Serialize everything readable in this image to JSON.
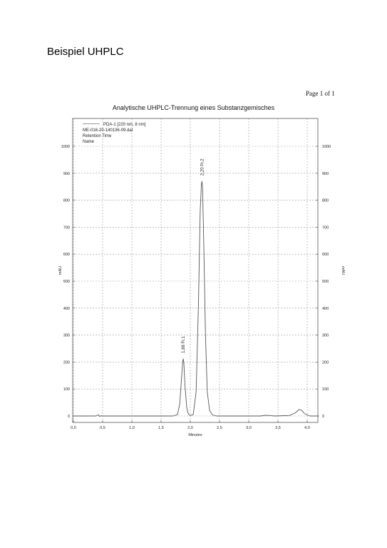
{
  "page": {
    "heading": "Beispiel UHPLC",
    "page_label": "Page 1 of 1"
  },
  "chart_data": {
    "type": "line",
    "title": "Analytische UHPLC-Trennung eines Substanzgemisches",
    "xlabel": "Minutes",
    "ylabel": "mAU",
    "xlim": [
      0.0,
      4.2
    ],
    "ylim": [
      -20,
      1050
    ],
    "grid": true,
    "legend_position": "top-left",
    "legend_lines": [
      "PDA-1 [220 nm, 8 nm]",
      "ME-016-20-140136-09.dat",
      "Retention Time",
      "Name"
    ],
    "x_ticks": [
      0.0,
      0.5,
      1.0,
      1.5,
      2.0,
      2.5,
      3.0,
      3.5,
      4.0
    ],
    "x_tick_labels": [
      "0,0",
      "0,5",
      "1,0",
      "1,5",
      "2,0",
      "2,5",
      "3,0",
      "3,5",
      "4,0"
    ],
    "y_ticks": [
      0,
      100,
      200,
      300,
      400,
      500,
      600,
      700,
      800,
      900,
      1000
    ],
    "y_tick_labels": [
      "0",
      "100",
      "200",
      "300",
      "400",
      "500",
      "600",
      "700",
      "800",
      "900",
      "1000"
    ],
    "series": [
      {
        "x": [
          0.0,
          0.38,
          0.41,
          0.43,
          0.45,
          0.47,
          0.5,
          1.7,
          1.78,
          1.82,
          1.85,
          1.87,
          1.88,
          1.89,
          1.91,
          1.94,
          1.97,
          2.0,
          2.05,
          2.1,
          2.14,
          2.17,
          2.19,
          2.2,
          2.21,
          2.23,
          2.26,
          2.29,
          2.33,
          2.38,
          2.45,
          2.7,
          3.2,
          3.3,
          3.45,
          3.7,
          3.8,
          3.86,
          3.9,
          3.96,
          4.05,
          4.2
        ],
        "y": [
          0,
          0,
          3,
          4,
          -2,
          1,
          0,
          0,
          5,
          45,
          140,
          200,
          212,
          195,
          110,
          30,
          6,
          2,
          5,
          90,
          420,
          760,
          860,
          870,
          850,
          640,
          300,
          90,
          20,
          4,
          0,
          0,
          0,
          3,
          0,
          2,
          12,
          24,
          22,
          8,
          0,
          0
        ]
      }
    ],
    "peak_labels": [
      {
        "x": 1.88,
        "y": 212,
        "text": "1,88  Fr.1"
      },
      {
        "x": 2.2,
        "y": 870,
        "text": "2,20  Fr.2"
      }
    ]
  }
}
